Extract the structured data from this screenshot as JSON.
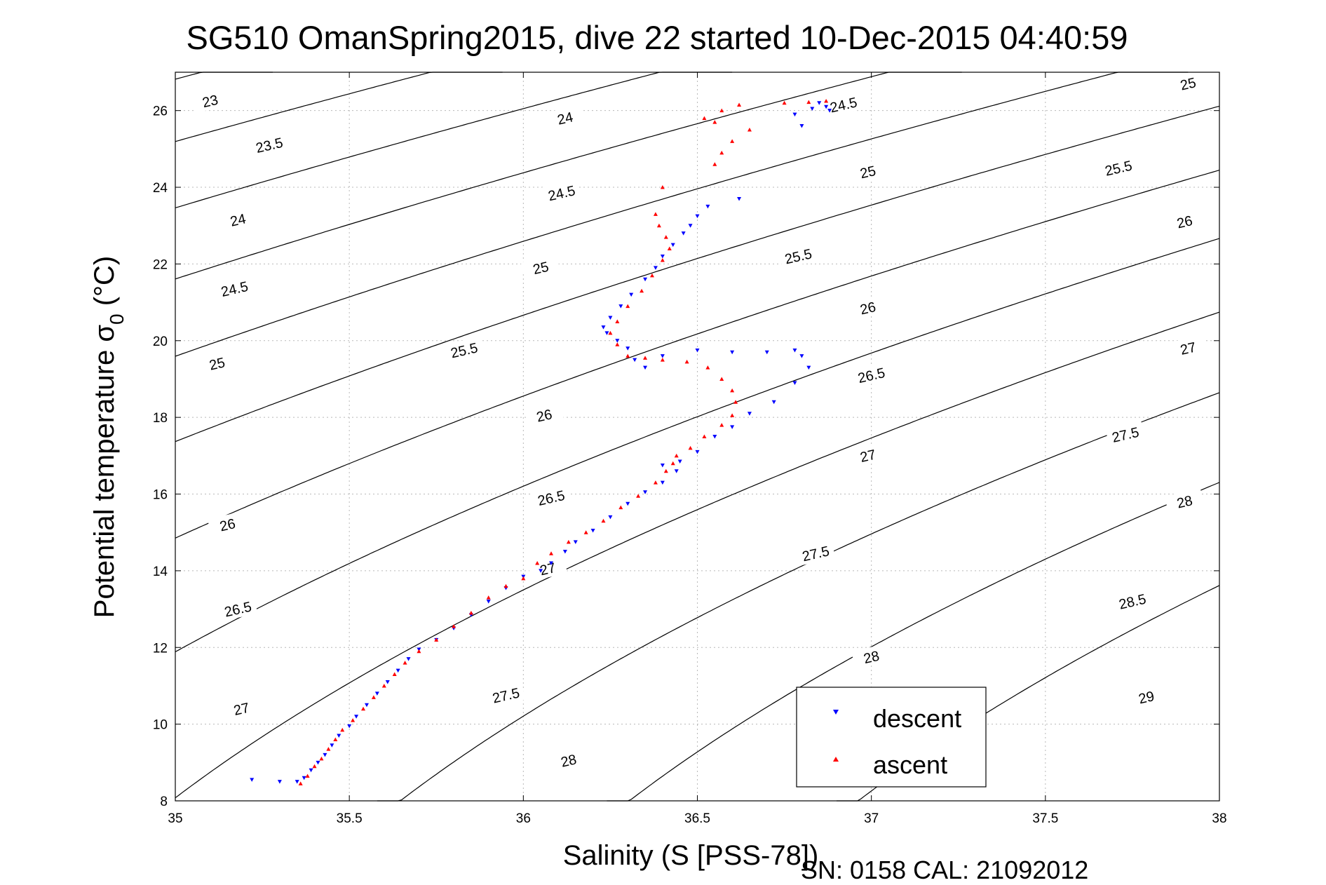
{
  "chart_data": {
    "type": "scatter",
    "title": "SG510 OmanSpring2015, dive 22 started 10-Dec-2015 04:40:59",
    "xlabel": "Salinity (S [PSS-78])",
    "ylabel_main": "Potential temperature σ",
    "ylabel_sub": "0",
    "ylabel_end": " (°C)",
    "xlim": [
      35,
      38
    ],
    "ylim": [
      8,
      27
    ],
    "xticks": [
      35,
      35.5,
      36,
      36.5,
      37,
      37.5,
      38
    ],
    "xtick_labels": [
      "35",
      "35.5",
      "36",
      "36.5",
      "37",
      "37.5",
      "38"
    ],
    "yticks": [
      8,
      10,
      12,
      14,
      16,
      18,
      20,
      22,
      24,
      26
    ],
    "ytick_labels": [
      "8",
      "10",
      "12",
      "14",
      "16",
      "18",
      "20",
      "22",
      "24",
      "26"
    ],
    "grid": true,
    "legend_position": "bottom-right",
    "footer": "SN: 0158  CAL: 21092012",
    "contours": {
      "levels": [
        23,
        23.5,
        24,
        24.5,
        25,
        25.5,
        26,
        26.5,
        27,
        27.5,
        28,
        28.5,
        29
      ],
      "labels": [
        {
          "text": "23",
          "s": 35.1,
          "t": 26.25
        },
        {
          "text": "23.5",
          "s": 35.27,
          "t": 25.1
        },
        {
          "text": "24",
          "s": 35.18,
          "t": 23.15
        },
        {
          "text": "24.5",
          "s": 35.17,
          "t": 21.35
        },
        {
          "text": "25",
          "s": 35.12,
          "t": 19.4
        },
        {
          "text": "26",
          "s": 35.15,
          "t": 15.2
        },
        {
          "text": "26.5",
          "s": 35.18,
          "t": 13.0
        },
        {
          "text": "27",
          "s": 35.19,
          "t": 10.4
        },
        {
          "text": "25.5",
          "s": 35.83,
          "t": 19.75
        },
        {
          "text": "26",
          "s": 36.06,
          "t": 18.05
        },
        {
          "text": "26.5",
          "s": 36.08,
          "t": 15.9
        },
        {
          "text": "27",
          "s": 36.07,
          "t": 14.05
        },
        {
          "text": "27.5",
          "s": 35.95,
          "t": 10.75
        },
        {
          "text": "28",
          "s": 36.13,
          "t": 9.05
        },
        {
          "text": "24",
          "s": 36.12,
          "t": 25.8
        },
        {
          "text": "24.5",
          "s": 36.11,
          "t": 23.85
        },
        {
          "text": "25",
          "s": 36.05,
          "t": 21.9
        },
        {
          "text": "24.5",
          "s": 36.92,
          "t": 26.15
        },
        {
          "text": "25",
          "s": 36.99,
          "t": 24.4
        },
        {
          "text": "25.5",
          "s": 36.79,
          "t": 22.2
        },
        {
          "text": "26",
          "s": 36.99,
          "t": 20.85
        },
        {
          "text": "26.5",
          "s": 37.0,
          "t": 19.1
        },
        {
          "text": "27",
          "s": 36.99,
          "t": 17.0
        },
        {
          "text": "27.5",
          "s": 36.84,
          "t": 14.45
        },
        {
          "text": "28",
          "s": 37.0,
          "t": 11.75
        },
        {
          "text": "25",
          "s": 37.91,
          "t": 26.7
        },
        {
          "text": "25.5",
          "s": 37.71,
          "t": 24.5
        },
        {
          "text": "26",
          "s": 37.9,
          "t": 23.1
        },
        {
          "text": "27",
          "s": 37.91,
          "t": 19.8
        },
        {
          "text": "27.5",
          "s": 37.73,
          "t": 17.55
        },
        {
          "text": "28",
          "s": 37.9,
          "t": 15.8
        },
        {
          "text": "28.5",
          "s": 37.75,
          "t": 13.2
        },
        {
          "text": "29",
          "s": 37.79,
          "t": 10.7
        }
      ]
    },
    "series": [
      {
        "name": "descent",
        "color": "#0000ff",
        "marker": "triangle-down",
        "points": [
          [
            35.22,
            8.55
          ],
          [
            35.3,
            8.5
          ],
          [
            35.35,
            8.5
          ],
          [
            35.37,
            8.6
          ],
          [
            35.39,
            8.8
          ],
          [
            35.41,
            9.0
          ],
          [
            35.43,
            9.2
          ],
          [
            35.45,
            9.45
          ],
          [
            35.47,
            9.7
          ],
          [
            35.5,
            9.95
          ],
          [
            35.52,
            10.2
          ],
          [
            35.55,
            10.5
          ],
          [
            35.58,
            10.8
          ],
          [
            35.61,
            11.1
          ],
          [
            35.64,
            11.4
          ],
          [
            35.67,
            11.7
          ],
          [
            35.7,
            11.95
          ],
          [
            35.75,
            12.2
          ],
          [
            35.8,
            12.5
          ],
          [
            35.85,
            12.85
          ],
          [
            35.9,
            13.2
          ],
          [
            35.95,
            13.55
          ],
          [
            36.0,
            13.85
          ],
          [
            36.05,
            14.0
          ],
          [
            36.08,
            14.2
          ],
          [
            36.12,
            14.5
          ],
          [
            36.15,
            14.75
          ],
          [
            36.2,
            15.05
          ],
          [
            36.25,
            15.4
          ],
          [
            36.3,
            15.75
          ],
          [
            36.35,
            16.05
          ],
          [
            36.4,
            16.3
          ],
          [
            36.44,
            16.6
          ],
          [
            36.4,
            16.75
          ],
          [
            36.45,
            16.85
          ],
          [
            36.5,
            17.1
          ],
          [
            36.55,
            17.5
          ],
          [
            36.6,
            17.75
          ],
          [
            36.65,
            18.1
          ],
          [
            36.72,
            18.4
          ],
          [
            36.78,
            18.9
          ],
          [
            36.82,
            19.3
          ],
          [
            36.8,
            19.6
          ],
          [
            36.78,
            19.75
          ],
          [
            36.7,
            19.7
          ],
          [
            36.6,
            19.7
          ],
          [
            36.5,
            19.75
          ],
          [
            36.4,
            19.6
          ],
          [
            36.35,
            19.3
          ],
          [
            36.32,
            19.5
          ],
          [
            36.3,
            19.8
          ],
          [
            36.27,
            20.0
          ],
          [
            36.24,
            20.2
          ],
          [
            36.23,
            20.35
          ],
          [
            36.25,
            20.6
          ],
          [
            36.28,
            20.9
          ],
          [
            36.31,
            21.2
          ],
          [
            36.35,
            21.6
          ],
          [
            36.38,
            21.9
          ],
          [
            36.4,
            22.2
          ],
          [
            36.43,
            22.5
          ],
          [
            36.46,
            22.8
          ],
          [
            36.48,
            23.0
          ],
          [
            36.5,
            23.25
          ],
          [
            36.53,
            23.5
          ],
          [
            36.62,
            23.7
          ],
          [
            36.8,
            25.6
          ],
          [
            36.83,
            26.05
          ],
          [
            36.85,
            26.2
          ],
          [
            36.87,
            26.1
          ],
          [
            36.88,
            26.0
          ],
          [
            36.78,
            25.9
          ]
        ]
      },
      {
        "name": "ascent",
        "color": "#ff0000",
        "marker": "triangle-up",
        "points": [
          [
            35.36,
            8.45
          ],
          [
            35.38,
            8.65
          ],
          [
            35.4,
            8.9
          ],
          [
            35.42,
            9.1
          ],
          [
            35.44,
            9.35
          ],
          [
            35.46,
            9.6
          ],
          [
            35.48,
            9.85
          ],
          [
            35.51,
            10.1
          ],
          [
            35.54,
            10.4
          ],
          [
            35.57,
            10.7
          ],
          [
            35.6,
            11.0
          ],
          [
            35.63,
            11.3
          ],
          [
            35.66,
            11.6
          ],
          [
            35.7,
            11.9
          ],
          [
            35.75,
            12.2
          ],
          [
            35.8,
            12.55
          ],
          [
            35.85,
            12.9
          ],
          [
            35.9,
            13.3
          ],
          [
            35.95,
            13.6
          ],
          [
            36.0,
            13.8
          ],
          [
            36.04,
            14.2
          ],
          [
            36.08,
            14.45
          ],
          [
            36.13,
            14.75
          ],
          [
            36.18,
            15.0
          ],
          [
            36.23,
            15.3
          ],
          [
            36.28,
            15.65
          ],
          [
            36.33,
            15.95
          ],
          [
            36.38,
            16.3
          ],
          [
            36.41,
            16.6
          ],
          [
            36.43,
            16.8
          ],
          [
            36.44,
            17.0
          ],
          [
            36.48,
            17.2
          ],
          [
            36.52,
            17.5
          ],
          [
            36.57,
            17.8
          ],
          [
            36.6,
            18.05
          ],
          [
            36.61,
            18.4
          ],
          [
            36.6,
            18.7
          ],
          [
            36.57,
            19.0
          ],
          [
            36.53,
            19.3
          ],
          [
            36.47,
            19.45
          ],
          [
            36.4,
            19.5
          ],
          [
            36.35,
            19.55
          ],
          [
            36.3,
            19.6
          ],
          [
            36.27,
            19.9
          ],
          [
            36.25,
            20.2
          ],
          [
            36.27,
            20.5
          ],
          [
            36.3,
            20.9
          ],
          [
            36.34,
            21.3
          ],
          [
            36.37,
            21.7
          ],
          [
            36.4,
            22.1
          ],
          [
            36.42,
            22.4
          ],
          [
            36.41,
            22.7
          ],
          [
            36.39,
            23.0
          ],
          [
            36.38,
            23.3
          ],
          [
            36.4,
            24.0
          ],
          [
            36.55,
            24.6
          ],
          [
            36.57,
            24.9
          ],
          [
            36.6,
            25.2
          ],
          [
            36.65,
            25.5
          ],
          [
            36.55,
            25.7
          ],
          [
            36.52,
            25.8
          ],
          [
            36.57,
            26.0
          ],
          [
            36.62,
            26.15
          ],
          [
            36.75,
            26.2
          ],
          [
            36.82,
            26.22
          ],
          [
            36.87,
            26.25
          ]
        ]
      }
    ]
  }
}
